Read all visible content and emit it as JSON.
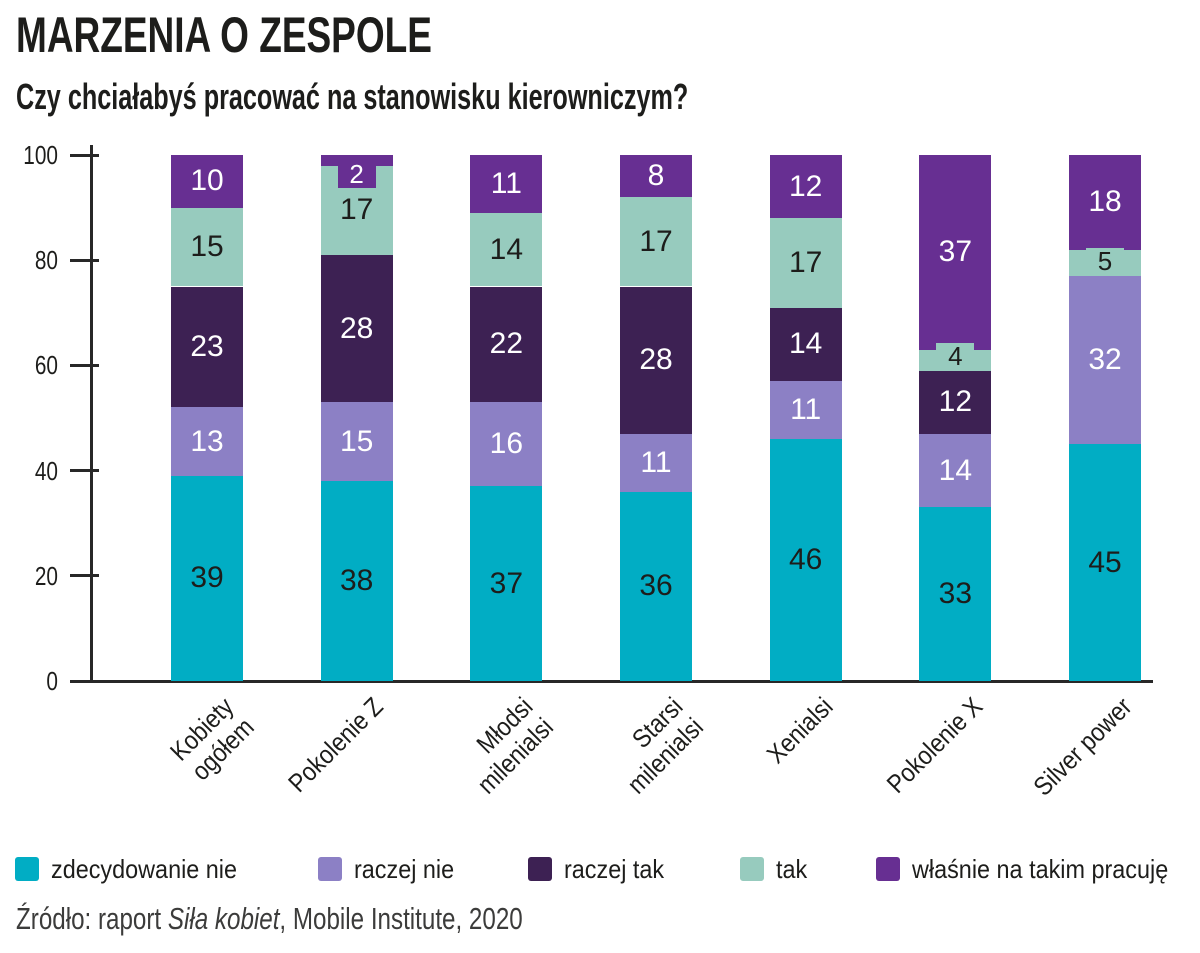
{
  "chart_data": {
    "type": "bar",
    "stacked": true,
    "title": "MARZENIA O ZESPOLE",
    "subtitle": "Czy chciałabyś pracować na stanowisku kierowniczym?",
    "categories": [
      [
        "Kobiety",
        "ogółem"
      ],
      [
        "Pokolenie Z"
      ],
      [
        "Młodsi",
        "milenialsi"
      ],
      [
        "Starsi",
        "milenialsi"
      ],
      [
        "Xenialsi"
      ],
      [
        "Pokolenie X"
      ],
      [
        "Silver power"
      ]
    ],
    "series": [
      {
        "name": "zdecydowanie nie",
        "color": "#01adc4",
        "label_color": "#1d1d1b",
        "values": [
          39,
          38,
          37,
          36,
          46,
          33,
          45
        ]
      },
      {
        "name": "raczej nie",
        "color": "#8c80c5",
        "label_color": "#ffffff",
        "values": [
          13,
          15,
          16,
          11,
          11,
          14,
          32
        ]
      },
      {
        "name": "raczej tak",
        "color": "#3d2153",
        "label_color": "#ffffff",
        "values": [
          23,
          28,
          22,
          28,
          14,
          12,
          0
        ]
      },
      {
        "name": "tak",
        "color": "#97cbbe",
        "label_color": "#1d1d1b",
        "values": [
          15,
          17,
          14,
          17,
          17,
          4,
          5
        ]
      },
      {
        "name": "właśnie na takim pracuję",
        "color": "#672f92",
        "label_color": "#ffffff",
        "values": [
          10,
          2,
          11,
          8,
          12,
          37,
          18
        ]
      }
    ],
    "ylabel": "",
    "xlabel": "",
    "ylim": [
      0,
      100
    ],
    "yticks": [
      0,
      20,
      40,
      60,
      80,
      100
    ],
    "grid": false,
    "legend_position": "bottom",
    "axis_color": "#282828",
    "source": {
      "prefix": "Źródło: raport ",
      "italic": "Siła kobiet",
      "suffix": ", Mobile Institute, 2020"
    }
  }
}
